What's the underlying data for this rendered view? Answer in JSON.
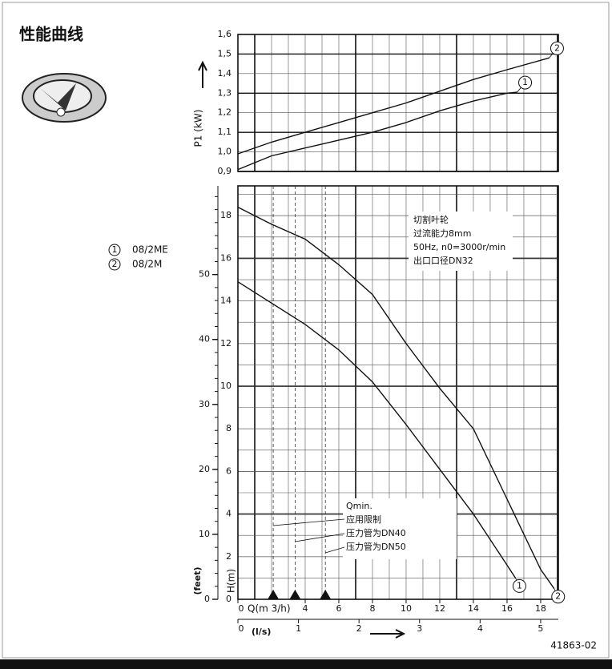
{
  "header": {
    "title": "性能曲线",
    "doc_number": "41863-02"
  },
  "legend": [
    {
      "marker": "1",
      "name": "08/2ME"
    },
    {
      "marker": "2",
      "name": "08/2M"
    }
  ],
  "chart_data": [
    {
      "type": "line",
      "ylabel": "P1 (kW)",
      "xlim": [
        0,
        19.05
      ],
      "ylim": [
        0.9,
        1.6
      ],
      "yticks": [
        {
          "value": 0.9,
          "label": "0,9"
        },
        {
          "value": 1.0,
          "label": "1,0"
        },
        {
          "value": 1.1,
          "label": "1,1"
        },
        {
          "value": 1.2,
          "label": "1,2"
        },
        {
          "value": 1.3,
          "label": "1,3"
        },
        {
          "value": 1.4,
          "label": "1,4"
        },
        {
          "value": 1.5,
          "label": "1,5"
        },
        {
          "value": 1.6,
          "label": "1,6"
        }
      ],
      "grid": true,
      "series": [
        {
          "name": "08/2ME",
          "marker": "1",
          "color": "#111111",
          "x": [
            0,
            2,
            4,
            6,
            8,
            10,
            12,
            14,
            16,
            16.6
          ],
          "values": [
            0.91,
            0.98,
            1.02,
            1.06,
            1.1,
            1.15,
            1.21,
            1.26,
            1.3,
            1.305
          ]
        },
        {
          "name": "08/2M",
          "marker": "2",
          "color": "#111111",
          "x": [
            0,
            2,
            4,
            6,
            8,
            10,
            12,
            14,
            16,
            18.5
          ],
          "values": [
            0.99,
            1.05,
            1.1,
            1.15,
            1.2,
            1.25,
            1.31,
            1.37,
            1.42,
            1.48
          ]
        }
      ]
    },
    {
      "type": "line",
      "ylabel": "H(m)",
      "y2label": "(feet)",
      "xlabel": "Q(m 3/h)",
      "x2label": "(l/s)",
      "xlim": [
        0,
        19.05
      ],
      "xticks": [
        0,
        4,
        6,
        8,
        10,
        12,
        14,
        16,
        18
      ],
      "x2lim": [
        0,
        5.292
      ],
      "x2ticks": [
        0,
        1,
        2,
        3,
        4,
        5
      ],
      "ylim": [
        0,
        19.4
      ],
      "yticks": [
        0,
        2,
        4,
        6,
        8,
        10,
        12,
        14,
        16,
        18
      ],
      "y2lim": [
        0,
        63.65
      ],
      "y2ticks": [
        0,
        10,
        20,
        30,
        40,
        50
      ],
      "grid": true,
      "series": [
        {
          "name": "08/2ME",
          "marker": "1",
          "color": "#111111",
          "x": [
            0,
            2,
            4,
            6,
            8,
            10,
            12,
            14,
            16,
            16.5
          ],
          "values": [
            14.9,
            13.9,
            12.9,
            11.7,
            10.2,
            8.2,
            6.1,
            4.0,
            1.6,
            1.0
          ]
        },
        {
          "name": "08/2M",
          "marker": "2",
          "color": "#111111",
          "x": [
            0,
            2,
            4,
            6,
            8,
            10,
            12,
            14,
            16,
            18,
            18.8
          ],
          "values": [
            18.4,
            17.6,
            16.9,
            15.7,
            14.3,
            12.0,
            9.9,
            8.0,
            4.7,
            1.4,
            0.5
          ]
        }
      ],
      "reference_x": [
        2.1,
        3.4,
        5.2
      ],
      "notes": [
        "切割叶轮",
        "过流能力8mm",
        "50Hz, n0=3000r/min",
        "出口口径DN32"
      ],
      "annotations": [
        "Qmin.",
        "应用限制",
        "压力管为DN40",
        "压力管为DN50"
      ]
    }
  ]
}
